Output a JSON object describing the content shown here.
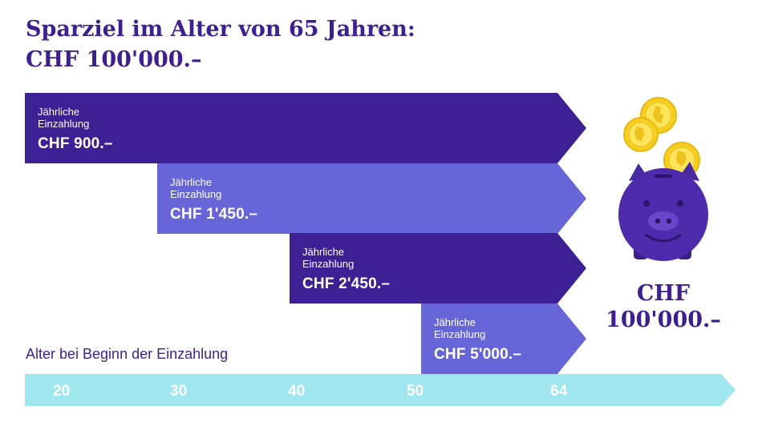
{
  "title": {
    "line1": "Sparziel im Alter von 65 Jahren:",
    "line2": "CHF 100'000.–"
  },
  "payments": [
    {
      "start_age": "20",
      "label": "Jährliche Einzahlung",
      "amount": "CHF 900.–"
    },
    {
      "start_age": "30",
      "label": "Jährliche Einzahlung",
      "amount": "CHF 1'450.–"
    },
    {
      "start_age": "40",
      "label": "Jährliche Einzahlung",
      "amount": "CHF 2'450.–"
    },
    {
      "start_age": "50",
      "label": "Jährliche Einzahlung",
      "amount": "CHF 5'000.–"
    }
  ],
  "axis": {
    "caption": "Alter bei Beginn der Einzahlung",
    "ticks": [
      "20",
      "30",
      "40",
      "50",
      "64"
    ]
  },
  "goal": {
    "line1": "CHF",
    "line2": "100'000.–"
  },
  "icons": [
    "piggy-bank-icon",
    "coin-icon"
  ],
  "colors": {
    "dark_purple": "#3d2094",
    "light_purple": "#6666d9",
    "axis_cyan": "#9fe6ee",
    "coin_gold": "#f5cf22",
    "text_purple": "#3d1f8f"
  }
}
